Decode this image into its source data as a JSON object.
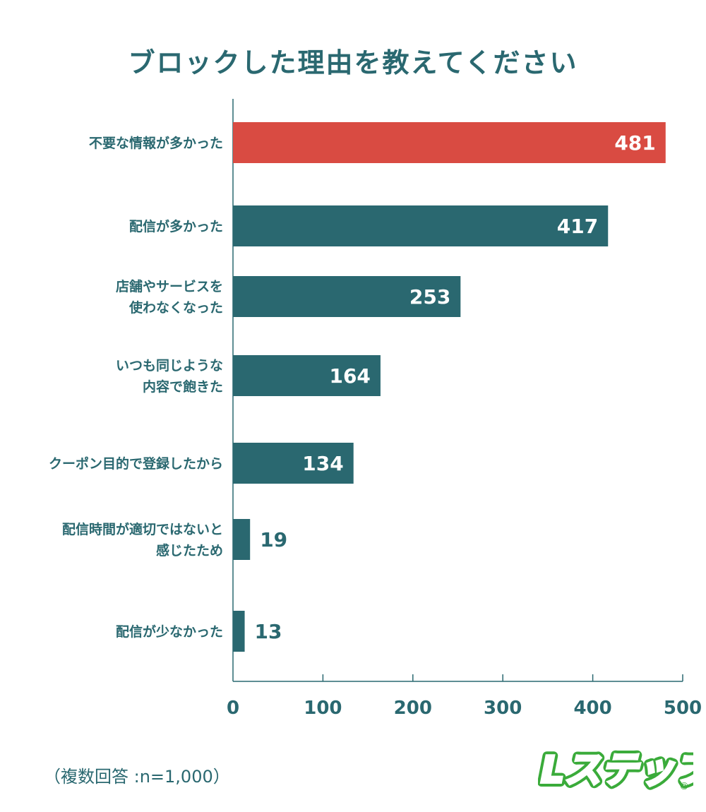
{
  "chart_data": {
    "type": "bar",
    "orientation": "horizontal",
    "title": "ブロックした理由を教えてください",
    "categories": [
      "不要な情報が多かった",
      "配信が多かった",
      "店舗やサービスを\n使わなくなった",
      "いつも同じような\n内容で飽きた",
      "クーポン目的で登録したから",
      "配信時間が適切ではないと\n感じたため",
      "配信が少なかった"
    ],
    "values": [
      481,
      417,
      253,
      164,
      134,
      19,
      13
    ],
    "xlim": [
      0,
      500
    ],
    "xticks": [
      0,
      100,
      200,
      300,
      400,
      500
    ],
    "grid": false,
    "colors": {
      "highlight": "#d94b42",
      "bar": "#2a6870",
      "axis": "#2a6870"
    }
  },
  "note": "（複数回答 :n=1,000）",
  "logo": {
    "text": "Lステップ",
    "mark": "®"
  }
}
